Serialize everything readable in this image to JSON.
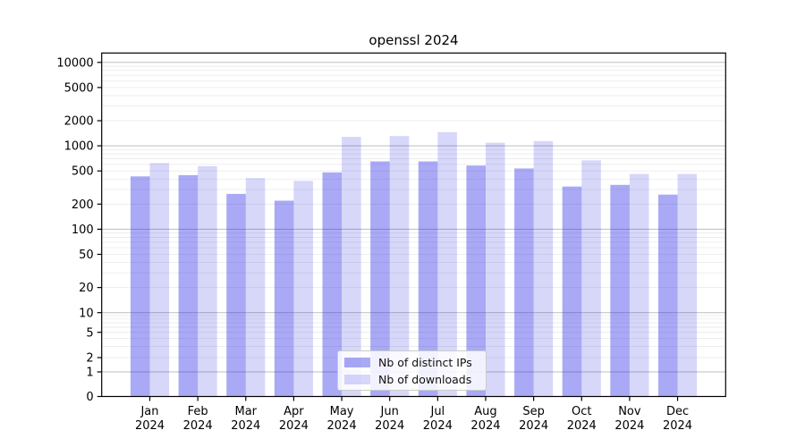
{
  "chart_data": {
    "type": "bar",
    "title": "openssl 2024",
    "categories": [
      "Jan",
      "Feb",
      "Mar",
      "Apr",
      "May",
      "Jun",
      "Jul",
      "Aug",
      "Sep",
      "Oct",
      "Nov",
      "Dec"
    ],
    "year_label": "2024",
    "series": [
      {
        "name": "Nb of distinct IPs",
        "color": "rgba(40,40,230,0.40)",
        "values": [
          430,
          445,
          265,
          220,
          480,
          650,
          650,
          580,
          535,
          325,
          340,
          260
        ]
      },
      {
        "name": "Nb of downloads",
        "color": "rgba(40,40,230,0.185)",
        "values": [
          620,
          570,
          410,
          380,
          1280,
          1310,
          1460,
          1090,
          1140,
          670,
          460,
          460
        ]
      }
    ],
    "y_ticks": [
      0,
      1,
      2,
      5,
      10,
      20,
      50,
      100,
      200,
      500,
      1000,
      2000,
      5000,
      10000
    ],
    "y_scale": "symlog",
    "ylim": [
      0,
      13000
    ],
    "grid": true,
    "legend_position": "lower-center",
    "colors": {
      "major_grid": "#bdbdbd",
      "minor_grid": "#e9e9e9",
      "axis": "#000000",
      "text": "#000000"
    }
  }
}
